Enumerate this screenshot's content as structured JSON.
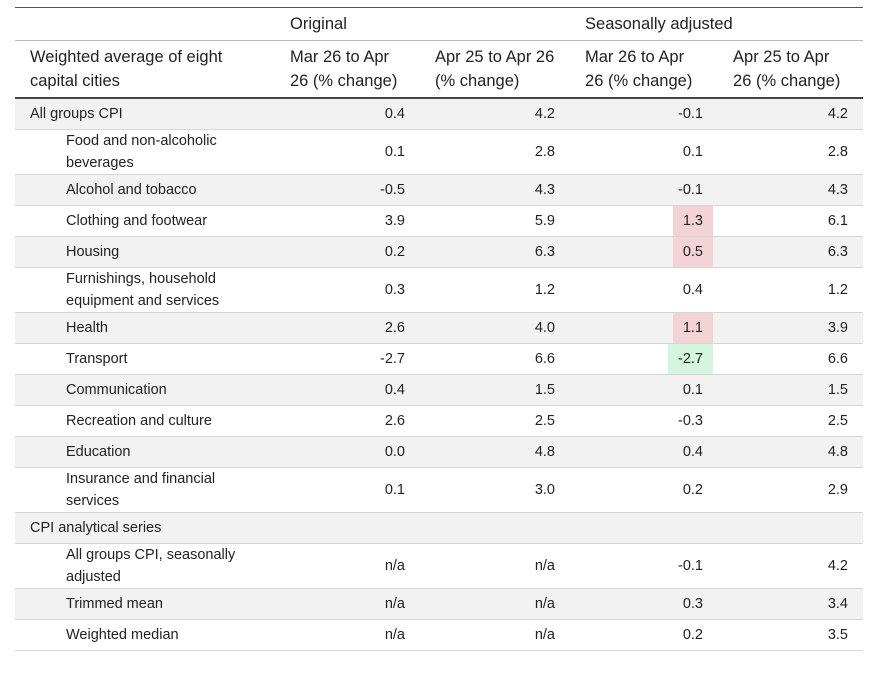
{
  "table": {
    "group_headers": [
      "Original",
      "Seasonally adjusted"
    ],
    "columns": [
      "Weighted average of eight capital cities",
      "Mar 26 to Apr 26 (% change)",
      "Apr 25 to Apr 26 (% change)",
      "Mar 26 to Apr 26 (% change)",
      "Apr 25 to Apr 26 (% change)"
    ],
    "rows": [
      {
        "label": "All groups CPI",
        "values": [
          "0.4",
          "4.2",
          "-0.1",
          "4.2"
        ]
      },
      {
        "label": "Food and non-alcoholic beverages",
        "indent": true,
        "values": [
          "0.1",
          "2.8",
          "0.1",
          "2.8"
        ]
      },
      {
        "label": "Alcohol and tobacco",
        "indent": true,
        "values": [
          "-0.5",
          "4.3",
          "-0.1",
          "4.3"
        ]
      },
      {
        "label": "Clothing and footwear",
        "indent": true,
        "values": [
          "3.9",
          "5.9",
          "1.3",
          "6.1"
        ],
        "highlight": {
          "column": 2,
          "color": "#f3d3d5"
        }
      },
      {
        "label": "Housing",
        "indent": true,
        "values": [
          "0.2",
          "6.3",
          "0.5",
          "6.3"
        ],
        "highlight": {
          "column": 2,
          "color": "#f3d3d5"
        }
      },
      {
        "label": "Furnishings, household equipment and services",
        "indent": true,
        "values": [
          "0.3",
          "1.2",
          "0.4",
          "1.2"
        ]
      },
      {
        "label": "Health",
        "indent": true,
        "values": [
          "2.6",
          "4.0",
          "1.1",
          "3.9"
        ],
        "highlight": {
          "column": 2,
          "color": "#f3d3d5"
        }
      },
      {
        "label": "Transport",
        "indent": true,
        "values": [
          "-2.7",
          "6.6",
          "-2.7",
          "6.6"
        ],
        "highlight": {
          "column": 2,
          "color": "#d5f5de"
        }
      },
      {
        "label": "Communication",
        "indent": true,
        "values": [
          "0.4",
          "1.5",
          "0.1",
          "1.5"
        ]
      },
      {
        "label": "Recreation and culture",
        "indent": true,
        "values": [
          "2.6",
          "2.5",
          "-0.3",
          "2.5"
        ]
      },
      {
        "label": "Education",
        "indent": true,
        "values": [
          "0.0",
          "4.8",
          "0.4",
          "4.8"
        ]
      },
      {
        "label": "Insurance and financial services",
        "indent": true,
        "values": [
          "0.1",
          "3.0",
          "0.2",
          "2.9"
        ]
      },
      {
        "label": "CPI analytical series",
        "section": true
      },
      {
        "label": "All groups CPI, seasonally adjusted",
        "indent": true,
        "values": [
          "n/a",
          "n/a",
          "-0.1",
          "4.2"
        ]
      },
      {
        "label": "Trimmed mean",
        "indent": true,
        "values": [
          "n/a",
          "n/a",
          "0.3",
          "3.4"
        ]
      },
      {
        "label": "Weighted median",
        "indent": true,
        "values": [
          "n/a",
          "n/a",
          "0.2",
          "3.5"
        ]
      }
    ]
  }
}
